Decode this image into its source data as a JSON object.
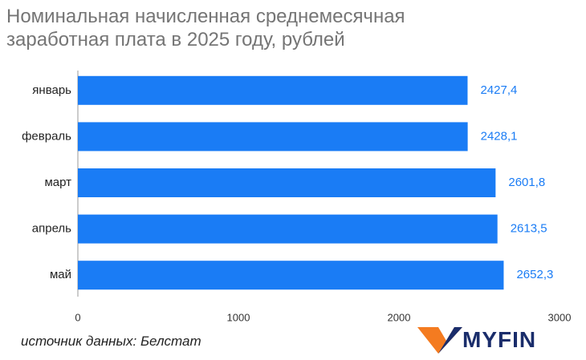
{
  "chart_data": {
    "type": "bar",
    "orientation": "horizontal",
    "title": "Номинальная начисленная среднемесячная заработная плата в 2025 году, рублей",
    "categories": [
      "январь",
      "февраль",
      "март",
      "апрель",
      "май"
    ],
    "values": [
      2427.4,
      2428.1,
      2601.8,
      2613.5,
      2652.3
    ],
    "value_labels": [
      "2427,4",
      "2428,1",
      "2601,8",
      "2613,5",
      "2652,3"
    ],
    "color": "#1a7cf5",
    "label_color": "#1a7cf5",
    "xlim": [
      0,
      3000
    ],
    "xticks": [
      0,
      1000,
      2000,
      3000
    ],
    "grid": false
  },
  "source": "источник данных: Белстат",
  "logo": "MYFIN"
}
